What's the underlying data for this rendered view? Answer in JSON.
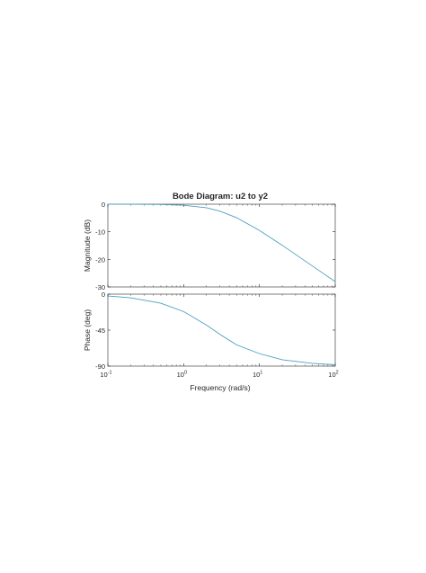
{
  "chart_data": {
    "type": "line",
    "title": "Bode Diagram: u2 to y2",
    "xlabel": "Frequency  (rad/s)",
    "x_scale": "log",
    "x_ticks": [
      {
        "value": 0.1,
        "base": "10",
        "exp": "-1"
      },
      {
        "value": 1,
        "base": "10",
        "exp": "0"
      },
      {
        "value": 10,
        "base": "10",
        "exp": "1"
      },
      {
        "value": 100,
        "base": "10",
        "exp": "2"
      }
    ],
    "grid": false,
    "line_color": "#4a9fc3",
    "panels": [
      {
        "name": "magnitude",
        "ylabel": "Magnitude (dB)",
        "ylim": [
          -30,
          0
        ],
        "y_ticks": [
          0,
          -10,
          -20,
          -30
        ],
        "y_tick_labels": [
          "0",
          "-10",
          "-20",
          "-30"
        ],
        "x": [
          0.1,
          0.2,
          0.5,
          1,
          2,
          3,
          5,
          10,
          20,
          50,
          100
        ],
        "values": [
          0.0,
          -0.02,
          -0.1,
          -0.4,
          -1.3,
          -2.5,
          -4.9,
          -9.5,
          -14.9,
          -22.4,
          -28.1
        ]
      },
      {
        "name": "phase",
        "ylabel": "Phase (deg)",
        "ylim": [
          -90,
          0
        ],
        "y_ticks": [
          0,
          -45,
          -90
        ],
        "y_tick_labels": [
          "0",
          "-45",
          "-90"
        ],
        "x": [
          0.1,
          0.2,
          0.5,
          1,
          2,
          3,
          5,
          10,
          20,
          50,
          100
        ],
        "values": [
          -2.3,
          -4.6,
          -11.3,
          -21.8,
          -38.7,
          -50.2,
          -63.4,
          -74.4,
          -82.1,
          -86.6,
          -88.3
        ]
      }
    ]
  }
}
